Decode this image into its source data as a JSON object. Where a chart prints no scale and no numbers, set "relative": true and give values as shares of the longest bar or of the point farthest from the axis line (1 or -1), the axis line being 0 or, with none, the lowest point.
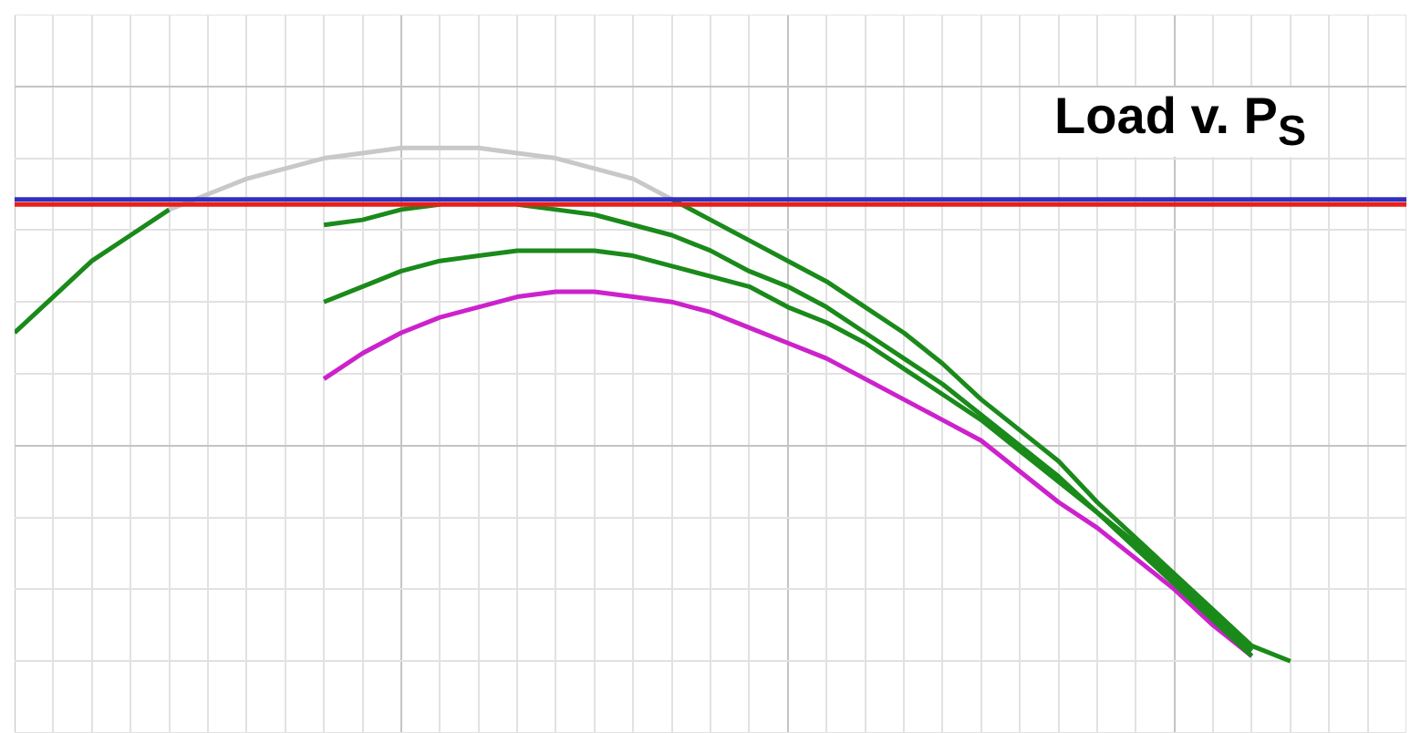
{
  "chart_data": {
    "type": "line",
    "title": "Load v. P$_{S}$",
    "relative": true,
    "grid": true,
    "legend": false,
    "marker": "none",
    "line_style": "solid",
    "categories": [
      null,
      null,
      null,
      null,
      null,
      null,
      null,
      null,
      null,
      null,
      null,
      null,
      null,
      null,
      null,
      null,
      null,
      null,
      null,
      null,
      null,
      null,
      null,
      null,
      null,
      null,
      null,
      null,
      null,
      null,
      null,
      null,
      null,
      null,
      null,
      null,
      null
    ],
    "series": [
      {
        "color": "#e8201a",
        "values": [
          0.89,
          0.89,
          0.89,
          0.89,
          0.89,
          0.89,
          0.89,
          0.89,
          0.89,
          0.89,
          0.89,
          0.89,
          0.89,
          0.89,
          0.89,
          0.89,
          0.89,
          0.89,
          0.89,
          0.89,
          0.89,
          0.89,
          0.89,
          0.89,
          0.89,
          0.89,
          0.89,
          0.89,
          0.89,
          0.89,
          0.89,
          0.89,
          0.89,
          0.89,
          0.89,
          0.89,
          0.89
        ]
      },
      {
        "color": "#3030c0",
        "values": [
          0.9,
          0.9,
          0.9,
          0.9,
          0.9,
          0.9,
          0.9,
          0.9,
          0.9,
          0.9,
          0.9,
          0.9,
          0.9,
          0.9,
          0.9,
          0.9,
          0.9,
          0.9,
          0.9,
          0.9,
          0.9,
          0.9,
          0.9,
          0.9,
          0.9,
          0.9,
          0.9,
          0.9,
          0.9,
          0.9,
          0.9,
          0.9,
          0.9,
          0.9,
          0.9,
          0.9,
          0.9
        ]
      },
      {
        "color": "#c8c8c8",
        "values": [
          null,
          null,
          null,
          null,
          0.88,
          0.91,
          0.94,
          0.96,
          0.98,
          0.99,
          1,
          1,
          1,
          0.99,
          0.98,
          0.96,
          0.94,
          0.9,
          null,
          null,
          null,
          null,
          null,
          null,
          null,
          null,
          null,
          null,
          null,
          null,
          null,
          null,
          null,
          null,
          null,
          null,
          null
        ]
      },
      {
        "color": "#1a8a1a",
        "values": [
          0.64,
          0.71,
          0.78,
          0.83,
          0.88,
          null,
          null,
          null,
          null,
          null,
          null,
          null,
          null,
          null,
          null,
          null,
          null,
          0.9,
          0.86,
          0.82,
          0.78,
          0.74,
          0.69,
          0.64,
          0.58,
          0.51,
          0.45,
          0.39,
          0.31,
          0.24,
          0.17,
          0.1,
          0.03,
          0,
          null,
          null,
          null
        ]
      },
      {
        "color": "#1a8a1a",
        "values": [
          null,
          null,
          null,
          null,
          null,
          null,
          null,
          null,
          0.85,
          0.86,
          0.88,
          0.89,
          null,
          0.89,
          0.88,
          0.87,
          0.85,
          0.83,
          0.8,
          0.76,
          0.73,
          0.69,
          0.64,
          0.59,
          0.54,
          0.48,
          0.42,
          0.36,
          0.29,
          0.23,
          0.16,
          0.09,
          0.02,
          null,
          null,
          null,
          null
        ]
      },
      {
        "color": "#1a8a1a",
        "values": [
          null,
          null,
          null,
          null,
          null,
          null,
          null,
          null,
          0.7,
          0.73,
          0.76,
          0.78,
          0.79,
          0.8,
          0.8,
          0.8,
          0.79,
          0.77,
          0.75,
          0.73,
          0.69,
          0.66,
          0.62,
          0.57,
          0.52,
          0.47,
          0.41,
          0.35,
          0.29,
          0.22,
          0.15,
          0.08,
          0.01,
          null,
          null,
          null,
          null
        ]
      },
      {
        "color": "#cc22cc",
        "values": [
          null,
          null,
          null,
          null,
          null,
          null,
          null,
          null,
          0.55,
          0.6,
          0.64,
          0.67,
          0.69,
          0.71,
          0.72,
          0.72,
          0.71,
          0.7,
          0.68,
          0.65,
          0.62,
          0.59,
          0.55,
          0.51,
          0.47,
          0.43,
          0.37,
          0.31,
          0.26,
          0.2,
          0.14,
          0.07,
          0.01,
          null,
          null,
          null,
          null
        ]
      }
    ]
  }
}
